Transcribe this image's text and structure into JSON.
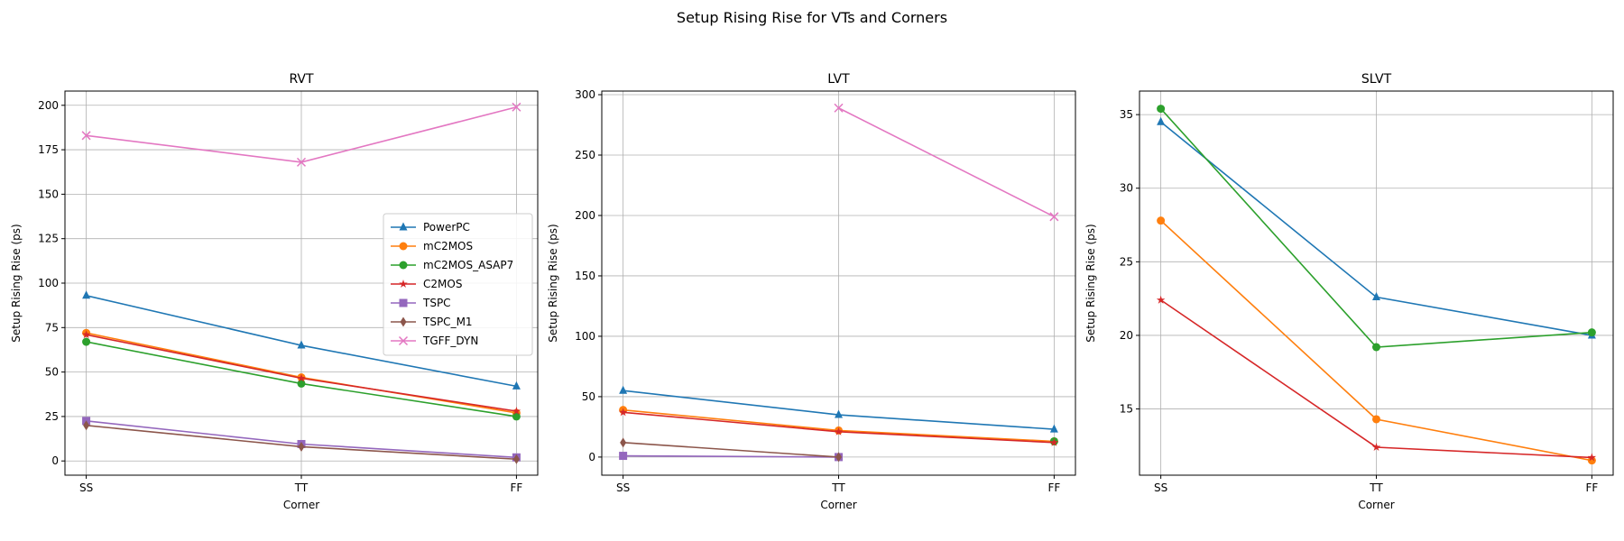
{
  "figure": {
    "title": "Setup Rising Rise for VTs and Corners"
  },
  "chart_data": [
    {
      "type": "line",
      "title": "RVT",
      "xlabel": "Corner",
      "ylabel": "Setup Rising Rise (ps)",
      "categories": [
        "SS",
        "TT",
        "FF"
      ],
      "ylim": [
        -8,
        208
      ],
      "yticks": [
        0,
        25,
        50,
        75,
        100,
        125,
        150,
        175,
        200
      ],
      "grid": true,
      "legend": "center-right",
      "series": [
        {
          "name": "PowerPC",
          "color": "#1f77b4",
          "marker": "triangle",
          "values": [
            93,
            65,
            42
          ]
        },
        {
          "name": "mC2MOS",
          "color": "#ff7f0e",
          "marker": "circle",
          "values": [
            72,
            47,
            27
          ]
        },
        {
          "name": "mC2MOS_ASAP7",
          "color": "#2ca02c",
          "marker": "circle",
          "values": [
            67,
            43.5,
            25
          ]
        },
        {
          "name": "C2MOS",
          "color": "#d62728",
          "marker": "star",
          "values": [
            71,
            46.5,
            28
          ]
        },
        {
          "name": "TSPC",
          "color": "#9467bd",
          "marker": "square",
          "values": [
            22.5,
            9.5,
            2
          ]
        },
        {
          "name": "TSPC_M1",
          "color": "#8c564b",
          "marker": "diamond",
          "values": [
            20,
            8,
            1
          ]
        },
        {
          "name": "TGFF_DYN",
          "color": "#e377c2",
          "marker": "x",
          "values": [
            183,
            168,
            199
          ]
        }
      ]
    },
    {
      "type": "line",
      "title": "LVT",
      "xlabel": "Corner",
      "ylabel": "Setup Rising Rise (ps)",
      "categories": [
        "SS",
        "TT",
        "FF"
      ],
      "ylim": [
        -15,
        303
      ],
      "yticks": [
        0,
        50,
        100,
        150,
        200,
        250,
        300
      ],
      "grid": true,
      "series": [
        {
          "name": "PowerPC",
          "color": "#1f77b4",
          "marker": "triangle",
          "values": [
            55,
            35,
            23
          ]
        },
        {
          "name": "mC2MOS",
          "color": "#ff7f0e",
          "marker": "circle",
          "values": [
            39,
            22,
            13
          ]
        },
        {
          "name": "mC2MOS_ASAP7",
          "color": "#2ca02c",
          "marker": "circle",
          "values": [
            null,
            null,
            13
          ]
        },
        {
          "name": "C2MOS",
          "color": "#d62728",
          "marker": "star",
          "values": [
            37,
            21,
            12
          ]
        },
        {
          "name": "TSPC",
          "color": "#9467bd",
          "marker": "square",
          "values": [
            1,
            0,
            null
          ]
        },
        {
          "name": "TSPC_M1",
          "color": "#8c564b",
          "marker": "diamond",
          "values": [
            12,
            0,
            null
          ]
        },
        {
          "name": "TGFF_DYN",
          "color": "#e377c2",
          "marker": "x",
          "values": [
            null,
            289,
            199
          ]
        }
      ]
    },
    {
      "type": "line",
      "title": "SLVT",
      "xlabel": "Corner",
      "ylabel": "Setup Rising Rise (ps)",
      "categories": [
        "SS",
        "TT",
        "FF"
      ],
      "ylim": [
        10.5,
        36.6
      ],
      "yticks": [
        15,
        20,
        25,
        30,
        35
      ],
      "grid": true,
      "series": [
        {
          "name": "PowerPC",
          "color": "#1f77b4",
          "marker": "triangle",
          "values": [
            34.5,
            22.6,
            20
          ]
        },
        {
          "name": "mC2MOS",
          "color": "#ff7f0e",
          "marker": "circle",
          "values": [
            27.8,
            14.3,
            11.5
          ]
        },
        {
          "name": "mC2MOS_ASAP7",
          "color": "#2ca02c",
          "marker": "circle",
          "values": [
            35.4,
            19.2,
            20.2
          ]
        },
        {
          "name": "C2MOS",
          "color": "#d62728",
          "marker": "star",
          "values": [
            22.4,
            12.4,
            11.7
          ]
        }
      ]
    }
  ]
}
